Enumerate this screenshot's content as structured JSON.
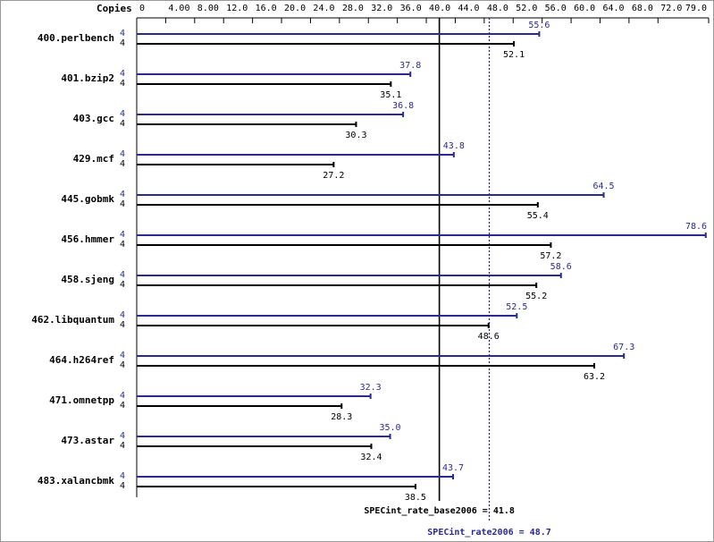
{
  "chart_data": {
    "type": "bar",
    "orientation": "horizontal",
    "copies_header": "Copies",
    "categories": [
      "400.perlbench",
      "401.bzip2",
      "403.gcc",
      "429.mcf",
      "445.gobmk",
      "456.hmmer",
      "458.sjeng",
      "462.libquantum",
      "464.h264ref",
      "471.omnetpp",
      "473.astar",
      "483.xalancbmk"
    ],
    "series": [
      {
        "color": "#2b2b8f",
        "copies": [
          4,
          4,
          4,
          4,
          4,
          4,
          4,
          4,
          4,
          4,
          4,
          4
        ],
        "values": [
          55.6,
          37.8,
          36.8,
          43.8,
          64.5,
          78.6,
          58.6,
          52.5,
          67.3,
          32.3,
          35.0,
          43.7
        ],
        "value_labels": [
          "55.6",
          "37.8",
          "36.8",
          "43.8",
          "64.5",
          "78.6",
          "58.6",
          "52.5",
          "67.3",
          "32.3",
          "35.0",
          "43.7"
        ]
      },
      {
        "color": "#000000",
        "copies": [
          4,
          4,
          4,
          4,
          4,
          4,
          4,
          4,
          4,
          4,
          4,
          4
        ],
        "values": [
          52.1,
          35.1,
          30.3,
          27.2,
          55.4,
          57.2,
          55.2,
          48.6,
          63.2,
          28.3,
          32.4,
          38.5
        ]
      }
    ],
    "xlim": [
      0,
      79.0
    ],
    "xticks": [
      0,
      {
        "value": 4,
        "label": "4.00"
      },
      {
        "value": 8,
        "label": "8.00"
      },
      {
        "value": 12,
        "label": "12.0"
      },
      {
        "value": 16,
        "label": "16.0"
      },
      {
        "value": 20,
        "label": "20.0"
      },
      {
        "value": 24,
        "label": "24.0"
      },
      {
        "value": 28,
        "label": "28.0"
      },
      {
        "value": 32,
        "label": "32.0"
      },
      {
        "value": 36,
        "label": "36.0"
      },
      {
        "value": 40,
        "label": "40.0"
      },
      {
        "value": 44,
        "label": "44.0"
      },
      {
        "value": 48,
        "label": "48.0"
      },
      {
        "value": 52,
        "label": "52.0"
      },
      {
        "value": 56,
        "label": "56.0"
      },
      {
        "value": 60,
        "label": "60.0"
      },
      {
        "value": 64,
        "label": "64.0"
      },
      {
        "value": 68,
        "label": "68.0"
      },
      {
        "value": 72,
        "label": "72.0"
      },
      {
        "value": 79,
        "label": "79.0"
      }
    ],
    "reference_lines": [
      {
        "label": "SPECint_rate_base2006 = 41.8",
        "value": 41.8,
        "color": "#000000",
        "style": "solid"
      },
      {
        "label": "SPECint_rate2006 = 48.7",
        "value": 48.7,
        "color": "#2b2b8f",
        "style": "dotted"
      }
    ]
  }
}
